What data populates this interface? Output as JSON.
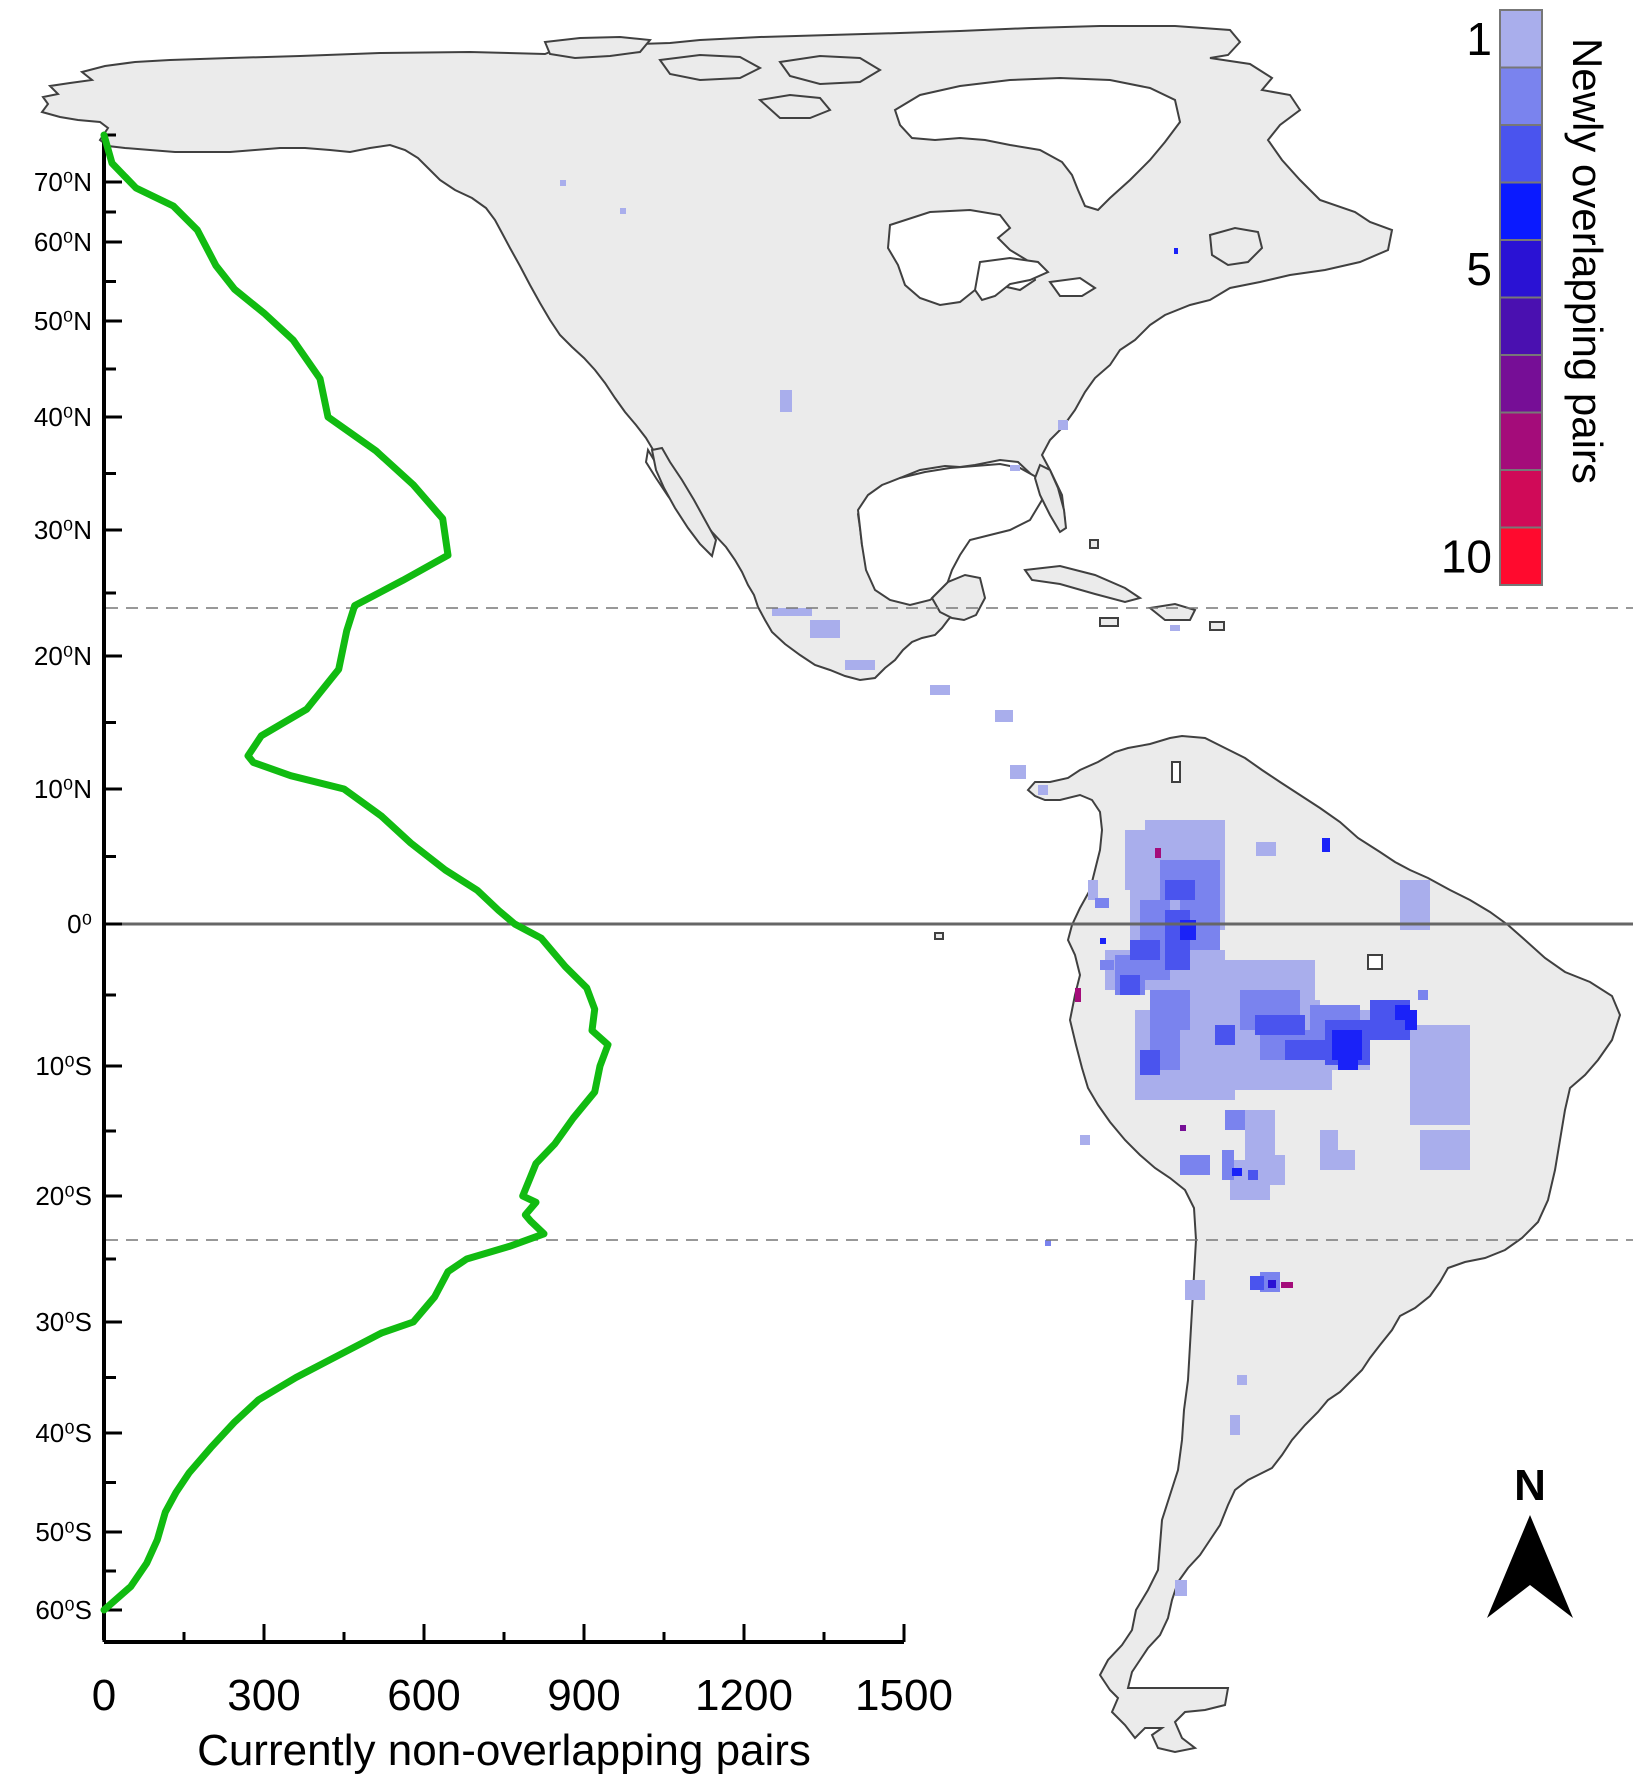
{
  "map": {
    "land_fill": "#ebebeb",
    "coast_stroke": "#404040",
    "equator_label": "0⁰",
    "north_label": "N",
    "north_icon": "north-arrow-icon"
  },
  "latitude_axis": {
    "labels": [
      {
        "lat": 70,
        "text": "70⁰N"
      },
      {
        "lat": 60,
        "text": "60⁰N"
      },
      {
        "lat": 50,
        "text": "50⁰N"
      },
      {
        "lat": 40,
        "text": "40⁰N"
      },
      {
        "lat": 30,
        "text": "30⁰N"
      },
      {
        "lat": 20,
        "text": "20⁰N"
      },
      {
        "lat": 10,
        "text": "10⁰N"
      },
      {
        "lat": 0,
        "text": "0⁰"
      },
      {
        "lat": -10,
        "text": "10⁰S"
      },
      {
        "lat": -20,
        "text": "20⁰S"
      },
      {
        "lat": -30,
        "text": "30⁰S"
      },
      {
        "lat": -40,
        "text": "40⁰S"
      },
      {
        "lat": -50,
        "text": "50⁰S"
      },
      {
        "lat": -60,
        "text": "60⁰S"
      }
    ],
    "tropic_lines": [
      23.4,
      -23.4
    ]
  },
  "legend": {
    "title": "Newly overlapping pairs",
    "tick_labels": [
      {
        "value": 1,
        "text": "1"
      },
      {
        "value": 5,
        "text": "5"
      },
      {
        "value": 10,
        "text": "10"
      }
    ],
    "colors": [
      "#a9aeec",
      "#7a83ee",
      "#4a54ee",
      "#0a1aff",
      "#2a12d4",
      "#4a10b0",
      "#760e96",
      "#a40c7a",
      "#d00a58",
      "#ff0a2e"
    ]
  },
  "chart_data": {
    "type": "line",
    "xlabel": "Currently non-overlapping pairs",
    "ylabel": "",
    "xlim": [
      0,
      1500
    ],
    "xticks": [
      0,
      300,
      600,
      900,
      1200,
      1500
    ],
    "ylim": [
      -63,
      77
    ],
    "line_color": "#11bb11",
    "series": [
      {
        "points": [
          [
            0,
            75
          ],
          [
            15,
            72
          ],
          [
            60,
            69
          ],
          [
            130,
            66
          ],
          [
            175,
            62
          ],
          [
            210,
            57
          ],
          [
            245,
            54
          ],
          [
            300,
            51
          ],
          [
            355,
            48
          ],
          [
            405,
            44
          ],
          [
            420,
            40
          ],
          [
            510,
            37
          ],
          [
            580,
            34
          ],
          [
            635,
            31
          ],
          [
            645,
            28
          ],
          [
            560,
            26
          ],
          [
            470,
            24
          ],
          [
            455,
            22
          ],
          [
            440,
            19
          ],
          [
            380,
            16
          ],
          [
            295,
            14
          ],
          [
            270,
            12.5
          ],
          [
            280,
            12
          ],
          [
            350,
            11
          ],
          [
            450,
            10
          ],
          [
            520,
            8
          ],
          [
            575,
            6
          ],
          [
            640,
            4
          ],
          [
            700,
            2.5
          ],
          [
            740,
            1
          ],
          [
            770,
            0
          ],
          [
            820,
            -1
          ],
          [
            865,
            -3
          ],
          [
            905,
            -4.5
          ],
          [
            920,
            -6
          ],
          [
            915,
            -7.5
          ],
          [
            945,
            -8.5
          ],
          [
            930,
            -10
          ],
          [
            920,
            -12
          ],
          [
            880,
            -14
          ],
          [
            845,
            -16
          ],
          [
            810,
            -17.5
          ],
          [
            800,
            -18.5
          ],
          [
            785,
            -20
          ],
          [
            810,
            -20.5
          ],
          [
            790,
            -21.5
          ],
          [
            800,
            -22
          ],
          [
            825,
            -23
          ],
          [
            760,
            -24
          ],
          [
            680,
            -25
          ],
          [
            645,
            -26
          ],
          [
            620,
            -28
          ],
          [
            580,
            -30
          ],
          [
            520,
            -31
          ],
          [
            480,
            -32
          ],
          [
            420,
            -33.5
          ],
          [
            360,
            -35
          ],
          [
            290,
            -37
          ],
          [
            245,
            -39
          ],
          [
            200,
            -41.5
          ],
          [
            160,
            -44
          ],
          [
            135,
            -46
          ],
          [
            115,
            -48
          ],
          [
            100,
            -51
          ],
          [
            80,
            -54
          ],
          [
            50,
            -57
          ],
          [
            0,
            -60
          ]
        ]
      }
    ]
  }
}
